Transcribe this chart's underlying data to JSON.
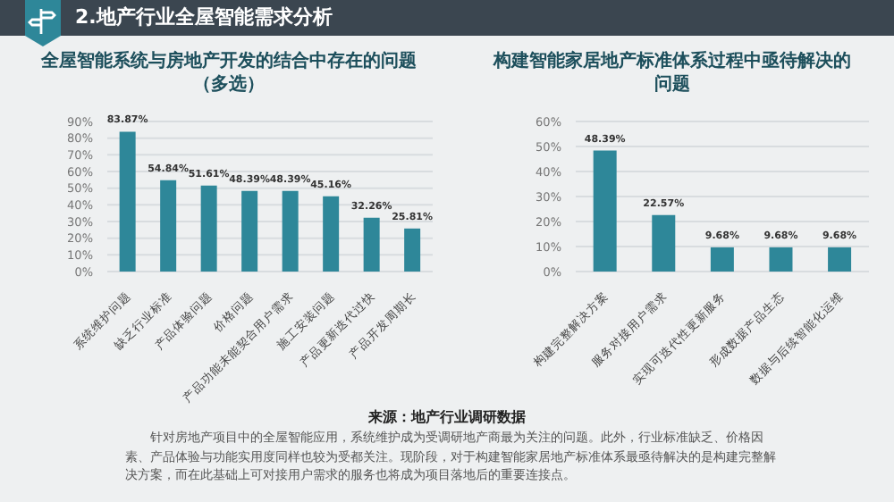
{
  "chart_data": [
    {
      "type": "bar",
      "title": "全屋智能系统与房地产开发的结合中存在的问题（多选）",
      "categories": [
        "系统维护问题",
        "缺乏行业标准",
        "产品体验问题",
        "价格问题",
        "产品功能未能契合用户需求",
        "施工安装问题",
        "产品更新迭代过快",
        "产品开发周期长"
      ],
      "values": [
        83.87,
        54.84,
        51.61,
        48.39,
        48.39,
        45.16,
        32.26,
        25.81
      ],
      "color": "#2e8799",
      "ylim": [
        0,
        90
      ],
      "yticks": [
        {
          "value": 0,
          "label": "0%"
        },
        {
          "value": 10,
          "label": "10%"
        },
        {
          "value": 20,
          "label": "20%"
        },
        {
          "value": 30,
          "label": "30%"
        },
        {
          "value": 40,
          "label": "40%"
        },
        {
          "value": 50,
          "label": "50%"
        },
        {
          "value": 60,
          "label": "60%"
        },
        {
          "value": 70,
          "label": "70%"
        },
        {
          "value": 80,
          "label": "80%"
        },
        {
          "value": 90,
          "label": "90%"
        }
      ],
      "grid": "y",
      "value_labels": [
        "83.87%",
        "54.84%",
        "51.61%",
        "48.39%",
        "48.39%",
        "45.16%",
        "32.26%",
        "25.81%"
      ],
      "annotations": [
        "2.地产行业全屋智能需求分析"
      ]
    },
    {
      "type": "bar",
      "title": "构建智能家居地产标准体系过程中亟待解决的问题",
      "categories": [
        "构建完整解决方案",
        "服务对接用户需求",
        "实现可迭代性更新服务",
        "形成数据产品生态",
        "数据与后续智能化运维"
      ],
      "values": [
        48.39,
        22.57,
        9.68,
        9.68,
        9.68
      ],
      "color": "#2e8799",
      "ylim": [
        0,
        60
      ],
      "yticks": [
        {
          "value": 0,
          "label": "0%"
        },
        {
          "value": 10,
          "label": "10%"
        },
        {
          "value": 20,
          "label": "20%"
        },
        {
          "value": 30,
          "label": "30%"
        },
        {
          "value": 40,
          "label": "40%"
        },
        {
          "value": 50,
          "label": "50%"
        },
        {
          "value": 60,
          "label": "60%"
        }
      ],
      "grid": "y",
      "value_labels": [
        "48.39%",
        "22.57%",
        "9.68%",
        "9.68%",
        "9.68%"
      ],
      "annotations": [
        "来源：地产行业调研数据",
        "针对房地产项目中的全屋智能应用，系统维护成为受调研地产商最为关注的问题。此外，行业标准缺乏、价格因素、产品体验与功能实用度同样也较为受都关注。现阶段，对于构建智能家居地产标准体系最亟待解决的是构建完整解决方案，而在此基础上可对接用户需求的服务也将成为项目落地后的重要连接点。"
      ]
    }
  ]
}
